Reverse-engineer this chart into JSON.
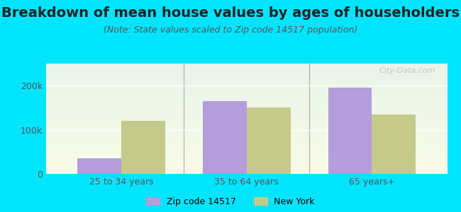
{
  "title": "Breakdown of mean house values by ages of householders",
  "subtitle": "(Note: State values scaled to Zip code 14517 population)",
  "categories": [
    "25 to 34 years",
    "35 to 64 years",
    "65 years+"
  ],
  "zip_values": [
    35000,
    165000,
    195000
  ],
  "ny_values": [
    120000,
    150000,
    135000
  ],
  "zip_color": "#b39ddb",
  "ny_color": "#c5c98a",
  "zip_label": "Zip code 14517",
  "ny_label": "New York",
  "ylim": [
    0,
    250000
  ],
  "yticks": [
    0,
    100000,
    200000
  ],
  "ytick_labels": [
    "0",
    "100k",
    "200k"
  ],
  "background_outer": "#00e5ff",
  "background_inner_top": "#e8f5e9",
  "background_inner_bottom": "#f9fbe7",
  "bar_width": 0.35,
  "title_fontsize": 14,
  "subtitle_fontsize": 9,
  "watermark": "City-Data.com"
}
